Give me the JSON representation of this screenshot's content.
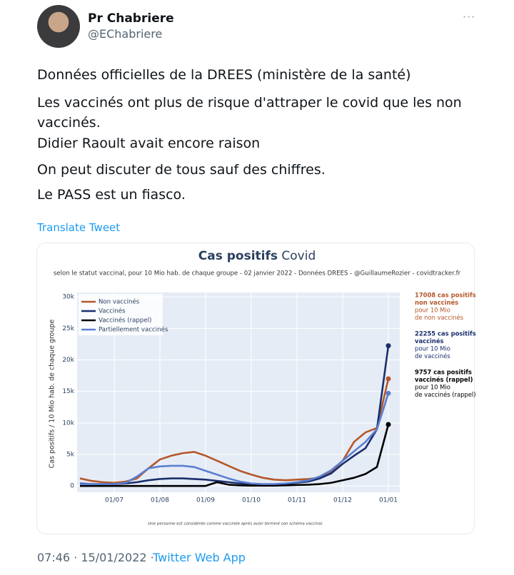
{
  "tweet": {
    "name": "Pr Chabriere",
    "handle": "@EChabriere",
    "lines": [
      "Données officielles de la DREES (ministère de la santé)",
      "Les vaccinés ont plus de risque d'attraper le covid que les non",
      "vaccinés.",
      "Didier Raoult avait encore raison",
      "On peut discuter de tous sauf des chiffres.",
      "Le PASS est un fiasco."
    ],
    "translate": "Translate Tweet",
    "timestamp": "07:46 · 15/01/2022 ·",
    "source": "Twitter Web App"
  },
  "chart_data": {
    "type": "line",
    "title": "Cas positifs",
    "title_suffix": " Covid",
    "subtitle": "selon le statut vaccinal, pour 10 Mio hab. de chaque groupe - 02 janvier 2022 - Données DREES - @GuillaumeRozier - covidtracker.fr",
    "y_label": "Cas positifs / 10 Mio hab. de chaque groupe",
    "footnote": "Une personne est considérée comme vaccinée après avoir terminé son schéma vaccinal.",
    "categories": [
      null,
      null,
      null,
      "01/07",
      null,
      null,
      null,
      "01/08",
      null,
      null,
      null,
      "01/09",
      null,
      null,
      null,
      "01/10",
      null,
      null,
      null,
      "01/11",
      null,
      null,
      null,
      "01/12",
      null,
      null,
      null,
      "01/01"
    ],
    "ylim": [
      -1000,
      30700
    ],
    "yticks": [
      0,
      {
        "value": 5000,
        "label": "5k"
      },
      {
        "value": 10000,
        "label": "10k"
      },
      {
        "value": 15000,
        "label": "15k"
      },
      {
        "value": 20000,
        "label": "20k"
      },
      {
        "value": 25000,
        "label": "25k"
      },
      {
        "value": 30000,
        "label": "30k"
      }
    ],
    "grid": true,
    "legend": "top-left",
    "series": [
      {
        "name": "Non vaccinés",
        "color": "#b5572a",
        "values": [
          1200,
          800,
          600,
          500,
          700,
          1200,
          2800,
          4200,
          4800,
          5200,
          5400,
          4800,
          4000,
          3200,
          2400,
          1800,
          1300,
          1000,
          900,
          1000,
          1100,
          1300,
          2200,
          4000,
          7000,
          8500,
          9200,
          17008
        ]
      },
      {
        "name": "Vaccinés",
        "color": "#1a2f6e",
        "values": [
          400,
          300,
          300,
          300,
          400,
          600,
          900,
          1100,
          1200,
          1200,
          1100,
          1000,
          800,
          600,
          400,
          300,
          250,
          250,
          300,
          500,
          700,
          1200,
          2000,
          3500,
          4800,
          6000,
          9000,
          22255
        ]
      },
      {
        "name": "Vaccinés (rappel)",
        "color": "#000000",
        "values": [
          0,
          0,
          0,
          0,
          0,
          0,
          0,
          0,
          0,
          0,
          0,
          0,
          600,
          200,
          100,
          50,
          50,
          50,
          100,
          150,
          200,
          300,
          500,
          900,
          1300,
          1900,
          3000,
          9757
        ]
      },
      {
        "name": "Partiellement vaccinés",
        "color": "#5b7fd0",
        "values": [
          300,
          300,
          300,
          300,
          500,
          1500,
          2800,
          3100,
          3200,
          3200,
          3000,
          2400,
          1800,
          1200,
          700,
          400,
          300,
          300,
          400,
          600,
          900,
          1500,
          2500,
          4000,
          5500,
          7000,
          9000,
          14700
        ]
      }
    ],
    "annotations": [
      {
        "bold": [
          "17008 cas positifs",
          "non vaccinés"
        ],
        "text": [
          "pour 10 Mio",
          "de non vaccinés"
        ],
        "color": "#b5572a"
      },
      {
        "bold": [
          "22255 cas positifs",
          "vaccinés"
        ],
        "text": [
          "pour 10 Mio",
          "de vaccinés"
        ],
        "color": "#1a2f6e"
      },
      {
        "bold": [
          "9757 cas positifs",
          "vaccinés (rappel)"
        ],
        "text": [
          "pour 10 Mio",
          "de vaccinés (rappel)"
        ],
        "color": "#000000"
      }
    ]
  }
}
